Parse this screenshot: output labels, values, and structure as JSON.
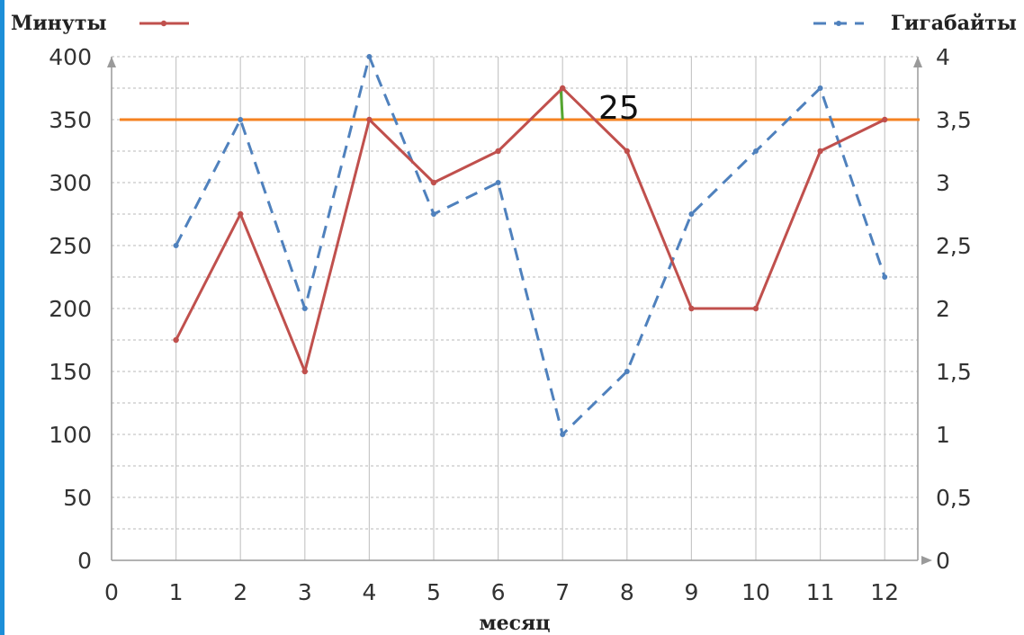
{
  "chart_data": {
    "type": "line",
    "x": [
      1,
      2,
      3,
      4,
      5,
      6,
      7,
      8,
      9,
      10,
      11,
      12
    ],
    "x_ticks": [
      "0",
      "1",
      "2",
      "3",
      "4",
      "5",
      "6",
      "7",
      "8",
      "9",
      "10",
      "11",
      "12"
    ],
    "xlim": [
      0,
      12.5
    ],
    "xlabel": "месяц",
    "ylim_left": [
      0,
      400
    ],
    "ylim_right": [
      0,
      4
    ],
    "y_ticks_left": [
      "0",
      "50",
      "100",
      "150",
      "200",
      "250",
      "300",
      "350",
      "400"
    ],
    "y_ticks_right": [
      "0",
      "0,5",
      "1",
      "1,5",
      "2",
      "2,5",
      "3",
      "3,5",
      "4"
    ],
    "grid": true,
    "series": [
      {
        "name": "Минуты",
        "axis": "left",
        "style": "solid",
        "color": "#c0504d",
        "values": [
          175,
          275,
          150,
          350,
          300,
          325,
          375,
          325,
          200,
          200,
          325,
          350
        ]
      },
      {
        "name": "Гигабайты",
        "axis": "right",
        "style": "dashed",
        "color": "#4f81bd",
        "values": [
          2.5,
          3.5,
          2,
          4,
          2.75,
          3,
          1,
          1.5,
          2.75,
          3.25,
          3.75,
          2.25
        ]
      }
    ],
    "annotations": {
      "reference_line": {
        "value": 350,
        "axis": "left",
        "color": "#f58220"
      },
      "difference_marker": {
        "x": 7,
        "from": 375,
        "to": 350,
        "color": "#55a630"
      },
      "label": "25"
    }
  }
}
